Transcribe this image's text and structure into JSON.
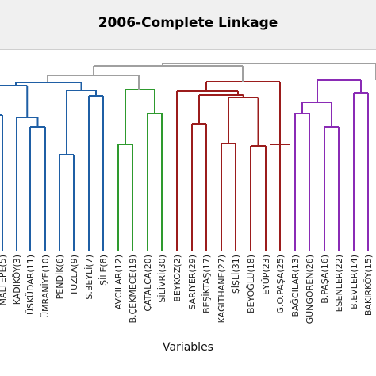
{
  "header": {
    "title": "2006-Complete Linkage"
  },
  "chart_data": {
    "type": "dendrogram",
    "title": "2006-Complete Linkage",
    "xlabel": "Variables",
    "ylabel": "",
    "leaves": [
      "MALTEPE(5)",
      "KADIKÖY(3)",
      "ÜSKÜDAR(11)",
      "ÜMRANİYE(10)",
      "PENDİK(6)",
      "TUZLA(9)",
      "S.BEYLİ(7)",
      "ŞİLE(8)",
      "AVCILAR(12)",
      "B.ÇEKMECE(19)",
      "ÇATALCA(20)",
      "SİLİVRİ(30)",
      "BEYKOZ(2)",
      "SARIYER(29)",
      "BEŞİKTAŞ(17)",
      "KAĞITHANE(27)",
      "ŞİŞLİ(31)",
      "BEYOĞLU(18)",
      "EYÜP(23)",
      "G.O.PAŞA(25)",
      "BAĞCILAR(13)",
      "GÜNGÖREN(26)",
      "B.PAŞA(16)",
      "ESENLER(22)",
      "B.EVLER(14)",
      "BAKIRKÖY(15)"
    ],
    "clusters": [
      {
        "leaves": [
          "MALTEPE(5)",
          "KADIKÖY(3)",
          "ÜSKÜDAR(11)",
          "ÜMRANİYE(10)",
          "PENDİK(6)",
          "TUZLA(9)",
          "S.BEYLİ(7)",
          "ŞİLE(8)"
        ],
        "color": "#1f5fa5"
      },
      {
        "leaves": [
          "AVCILAR(12)",
          "B.ÇEKMECE(19)",
          "ÇATALCA(20)",
          "SİLİVRİ(30)"
        ],
        "color": "#2e9a2e"
      },
      {
        "leaves": [
          "BEYKOZ(2)",
          "SARIYER(29)",
          "BEŞİKTAŞ(17)",
          "KAĞITHANE(27)",
          "ŞİŞLİ(31)",
          "BEYOĞLU(18)",
          "EYÜP(23)",
          "G.O.PAŞA(25)"
        ],
        "color": "#9b1c1c"
      },
      {
        "leaves": [
          "BAĞCILAR(13)",
          "GÜNGÖREN(26)",
          "B.PAŞA(16)",
          "ESENLER(22)",
          "B.EVLER(14)",
          "BAKIRKÖY(15)"
        ],
        "color": "#8a2bb5"
      }
    ],
    "link_color": "#a0a0a0",
    "grid": false,
    "legend": "none"
  }
}
